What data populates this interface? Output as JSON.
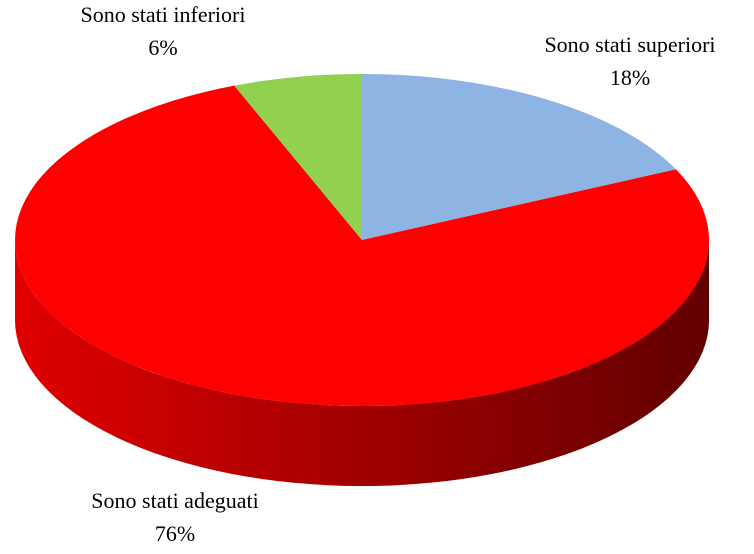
{
  "chart_data": {
    "type": "pie",
    "categories": [
      "Sono stati superiori",
      "Sono stati adeguati",
      "Sono stati inferiori"
    ],
    "values": [
      18,
      76,
      6
    ],
    "value_labels": [
      "18%",
      "76%",
      "6%"
    ],
    "colors": [
      "#8eb4e3",
      "#ff0000",
      "#92d050"
    ]
  }
}
